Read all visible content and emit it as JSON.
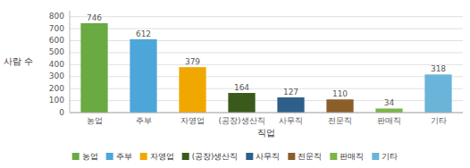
{
  "chart_data": {
    "type": "bar",
    "categories": [
      "농업",
      "주부",
      "자영업",
      "(공장)생산직",
      "사무직",
      "전문직",
      "판매직",
      "기타"
    ],
    "values": [
      746,
      612,
      379,
      164,
      127,
      110,
      34,
      318
    ],
    "colors": [
      "#6aaa42",
      "#4da6d9",
      "#f0a800",
      "#3a5a1c",
      "#2e5f8a",
      "#8b5e2a",
      "#7ab648",
      "#6ab4d9"
    ],
    "xlabel": "직업",
    "ylabel": "사람 수",
    "ylim": [
      0,
      850
    ],
    "yticks": [
      0,
      100,
      200,
      300,
      400,
      500,
      600,
      700,
      800
    ],
    "grid": true,
    "data_labels": true,
    "legend": "bottom"
  }
}
